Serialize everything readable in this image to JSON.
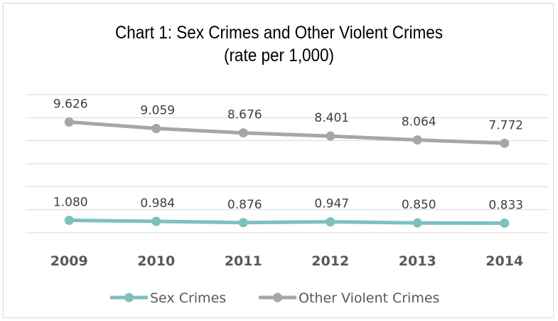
{
  "chart_data": {
    "type": "line",
    "title_line1": "Chart 1: Sex Crimes and Other Violent Crimes",
    "title_line2": "(rate per 1,000)",
    "categories": [
      "2009",
      "2010",
      "2011",
      "2012",
      "2013",
      "2014"
    ],
    "series": [
      {
        "name": "Sex Crimes",
        "color": "#7fbfbf",
        "values": [
          1.08,
          0.984,
          0.876,
          0.947,
          0.85,
          0.833
        ],
        "labels": [
          "1.080",
          "0.984",
          "0.876",
          "0.947",
          "0.850",
          "0.833"
        ]
      },
      {
        "name": "Other Violent Crimes",
        "color": "#a6a6a6",
        "values": [
          9.626,
          9.059,
          8.676,
          8.401,
          8.064,
          7.772
        ],
        "labels": [
          "9.626",
          "9.059",
          "8.676",
          "8.401",
          "8.064",
          "7.772"
        ]
      }
    ],
    "ylim": [
      -0.5,
      12
    ],
    "grid": true,
    "legend": "bottom"
  }
}
